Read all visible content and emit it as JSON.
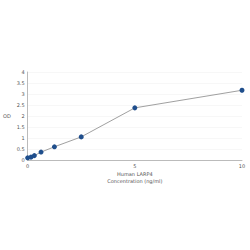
{
  "chart_data": {
    "type": "line",
    "x_label": "Human LARP4\nConcentration (ng/ml)",
    "y_label": "OD",
    "x": [
      0,
      0.156,
      0.313,
      0.625,
      1.25,
      2.5,
      5,
      10
    ],
    "values": [
      0.1,
      0.13,
      0.2,
      0.36,
      0.6,
      1.05,
      2.37,
      3.17
    ],
    "color": "#1f4e8c",
    "marker": "circle",
    "xlim": [
      0,
      10
    ],
    "xticks": [
      0,
      5,
      10
    ],
    "ylim": [
      0,
      4
    ],
    "yticks": [
      0,
      0.5,
      1,
      1.5,
      2,
      2.5,
      3,
      3.5,
      4
    ],
    "grid": true
  }
}
